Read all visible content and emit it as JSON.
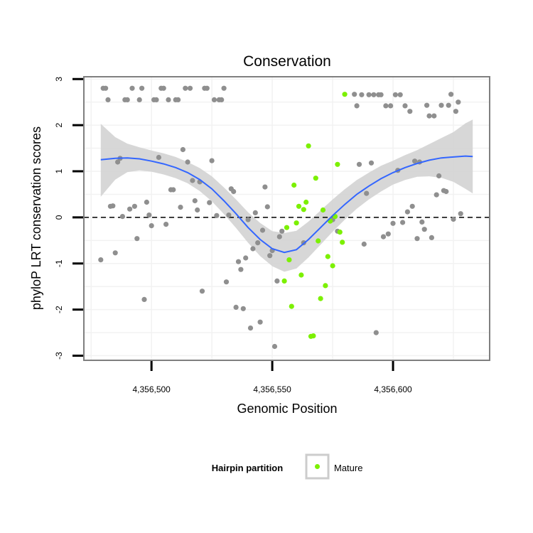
{
  "chart_data": {
    "type": "scatter",
    "title": "Conservation",
    "xlabel": "Genomic Position",
    "ylabel": "phyloP LRT conservation scores",
    "xlim": [
      4356472,
      4356640
    ],
    "ylim": [
      -3.1,
      3.05
    ],
    "x_ticks": [
      {
        "value": 4356500,
        "label": "4,356,500"
      },
      {
        "value": 4356550,
        "label": "4,356,550"
      },
      {
        "value": 4356600,
        "label": "4,356,600"
      }
    ],
    "y_ticks": [
      {
        "value": -3,
        "label": "-3"
      },
      {
        "value": -2,
        "label": "-2"
      },
      {
        "value": -1,
        "label": "-1"
      },
      {
        "value": 0,
        "label": "0"
      },
      {
        "value": 1,
        "label": "1"
      },
      {
        "value": 2,
        "label": "2"
      },
      {
        "value": 3,
        "label": "3"
      }
    ],
    "grid": true,
    "reference_line": {
      "y": 0,
      "style": "dashed"
    },
    "colors": {
      "other": "#8f8f8f",
      "mature": "#7cf000",
      "smooth": "#3366ff",
      "ribbon": "#d3d3d3",
      "panel_border": "#7f7f7f"
    },
    "legend": {
      "title": "Hairpin partition",
      "position": "bottom",
      "entries": [
        {
          "label": "Mature",
          "color": "#7cf000"
        }
      ]
    },
    "series": [
      {
        "group": "other",
        "points": [
          [
            4356479,
            -0.92
          ],
          [
            4356480,
            2.8
          ],
          [
            4356481,
            2.8
          ],
          [
            4356482,
            2.55
          ],
          [
            4356483,
            0.24
          ],
          [
            4356484,
            0.25
          ],
          [
            4356485,
            -0.77
          ],
          [
            4356486,
            1.2
          ],
          [
            4356487,
            1.28
          ],
          [
            4356488,
            0.02
          ],
          [
            4356489,
            2.55
          ],
          [
            4356490,
            2.55
          ],
          [
            4356491,
            0.18
          ],
          [
            4356492,
            2.8
          ],
          [
            4356493,
            0.24
          ],
          [
            4356494,
            -0.46
          ],
          [
            4356495,
            2.55
          ],
          [
            4356496,
            2.8
          ],
          [
            4356497,
            -1.78
          ],
          [
            4356498,
            0.33
          ],
          [
            4356499,
            0.05
          ],
          [
            4356500,
            -0.18
          ],
          [
            4356501,
            2.55
          ],
          [
            4356502,
            2.55
          ],
          [
            4356503,
            1.3
          ],
          [
            4356504,
            2.8
          ],
          [
            4356505,
            2.8
          ],
          [
            4356506,
            -0.15
          ],
          [
            4356507,
            2.55
          ],
          [
            4356508,
            0.6
          ],
          [
            4356509,
            0.6
          ],
          [
            4356510,
            2.55
          ],
          [
            4356511,
            2.55
          ],
          [
            4356512,
            0.22
          ],
          [
            4356513,
            1.47
          ],
          [
            4356514,
            2.8
          ],
          [
            4356515,
            1.2
          ],
          [
            4356516,
            2.8
          ],
          [
            4356517,
            0.8
          ],
          [
            4356518,
            0.36
          ],
          [
            4356519,
            0.16
          ],
          [
            4356520,
            0.77
          ],
          [
            4356521,
            -1.6
          ],
          [
            4356522,
            2.8
          ],
          [
            4356523,
            2.8
          ],
          [
            4356524,
            0.32
          ],
          [
            4356525,
            1.23
          ],
          [
            4356526,
            2.55
          ],
          [
            4356527,
            0.04
          ],
          [
            4356528,
            2.55
          ],
          [
            4356529,
            2.55
          ],
          [
            4356530,
            2.8
          ],
          [
            4356531,
            -1.4
          ],
          [
            4356532,
            0.05
          ],
          [
            4356533,
            0.62
          ],
          [
            4356534,
            0.56
          ],
          [
            4356535,
            -1.95
          ],
          [
            4356536,
            -0.96
          ],
          [
            4356537,
            -1.13
          ],
          [
            4356538,
            -1.98
          ],
          [
            4356539,
            -0.88
          ],
          [
            4356540,
            -0.05
          ],
          [
            4356541,
            -2.4
          ],
          [
            4356542,
            -0.68
          ],
          [
            4356543,
            0.1
          ],
          [
            4356544,
            -0.55
          ],
          [
            4356545,
            -2.27
          ],
          [
            4356546,
            -0.28
          ],
          [
            4356547,
            0.66
          ],
          [
            4356548,
            0.23
          ],
          [
            4356549,
            -0.83
          ],
          [
            4356550,
            -0.72
          ],
          [
            4356551,
            -2.8
          ],
          [
            4356552,
            -1.38
          ],
          [
            4356553,
            -0.42
          ],
          [
            4356554,
            -0.3
          ],
          [
            4356584,
            2.67
          ],
          [
            4356585,
            2.42
          ],
          [
            4356586,
            1.15
          ],
          [
            4356587,
            2.66
          ],
          [
            4356588,
            -0.58
          ],
          [
            4356589,
            0.52
          ],
          [
            4356590,
            2.66
          ],
          [
            4356591,
            1.18
          ],
          [
            4356592,
            2.66
          ],
          [
            4356593,
            -2.5
          ],
          [
            4356594,
            2.66
          ],
          [
            4356595,
            2.66
          ],
          [
            4356596,
            -0.42
          ],
          [
            4356597,
            2.42
          ],
          [
            4356598,
            -0.36
          ],
          [
            4356599,
            2.42
          ],
          [
            4356600,
            -0.13
          ],
          [
            4356601,
            2.66
          ],
          [
            4356602,
            1.02
          ],
          [
            4356603,
            2.66
          ],
          [
            4356604,
            -0.11
          ],
          [
            4356605,
            2.42
          ],
          [
            4356606,
            0.12
          ],
          [
            4356607,
            2.3
          ],
          [
            4356608,
            0.24
          ],
          [
            4356609,
            1.22
          ],
          [
            4356610,
            -0.46
          ],
          [
            4356611,
            1.2
          ],
          [
            4356612,
            -0.1
          ],
          [
            4356613,
            -0.26
          ],
          [
            4356614,
            2.43
          ],
          [
            4356615,
            2.2
          ],
          [
            4356616,
            -0.44
          ],
          [
            4356617,
            2.2
          ],
          [
            4356618,
            0.49
          ],
          [
            4356619,
            0.9
          ],
          [
            4356620,
            2.43
          ],
          [
            4356621,
            0.58
          ],
          [
            4356622,
            0.56
          ],
          [
            4356623,
            2.43
          ],
          [
            4356624,
            2.67
          ],
          [
            4356625,
            -0.04
          ],
          [
            4356626,
            2.3
          ],
          [
            4356627,
            2.5
          ],
          [
            4356628,
            0.08
          ],
          [
            4356575,
            -0.05
          ],
          [
            4356577,
            -0.3
          ],
          [
            4356563,
            -0.55
          ]
        ]
      },
      {
        "group": "Mature",
        "points": [
          [
            4356555,
            -1.38
          ],
          [
            4356556,
            -0.22
          ],
          [
            4356557,
            -0.92
          ],
          [
            4356558,
            -1.93
          ],
          [
            4356559,
            0.7
          ],
          [
            4356560,
            -0.12
          ],
          [
            4356561,
            0.24
          ],
          [
            4356562,
            -1.25
          ],
          [
            4356563,
            0.17
          ],
          [
            4356564,
            0.33
          ],
          [
            4356565,
            1.55
          ],
          [
            4356566,
            -2.58
          ],
          [
            4356567,
            -2.57
          ],
          [
            4356568,
            0.85
          ],
          [
            4356569,
            -0.51
          ],
          [
            4356570,
            -1.76
          ],
          [
            4356571,
            0.16
          ],
          [
            4356572,
            -1.48
          ],
          [
            4356573,
            -0.85
          ],
          [
            4356574,
            -0.08
          ],
          [
            4356575,
            -1.05
          ],
          [
            4356576,
            0.02
          ],
          [
            4356577,
            1.15
          ],
          [
            4356578,
            -0.32
          ],
          [
            4356579,
            -0.54
          ],
          [
            4356580,
            2.67
          ]
        ]
      }
    ],
    "smooth": {
      "x": [
        4356479,
        4356485,
        4356490,
        4356495,
        4356500,
        4356505,
        4356510,
        4356515,
        4356520,
        4356525,
        4356530,
        4356535,
        4356540,
        4356545,
        4356550,
        4356555,
        4356560,
        4356565,
        4356570,
        4356575,
        4356580,
        4356585,
        4356590,
        4356595,
        4356600,
        4356605,
        4356610,
        4356615,
        4356620,
        4356625,
        4356630,
        4356633
      ],
      "y": [
        1.25,
        1.28,
        1.29,
        1.27,
        1.22,
        1.16,
        1.08,
        0.97,
        0.82,
        0.62,
        0.36,
        0.08,
        -0.22,
        -0.48,
        -0.68,
        -0.76,
        -0.7,
        -0.48,
        -0.22,
        0.04,
        0.28,
        0.5,
        0.68,
        0.84,
        0.97,
        1.08,
        1.17,
        1.24,
        1.29,
        1.31,
        1.33,
        1.32
      ],
      "lower": [
        0.45,
        0.82,
        0.98,
        1.02,
        0.99,
        0.93,
        0.85,
        0.74,
        0.57,
        0.35,
        0.07,
        -0.23,
        -0.55,
        -0.84,
        -1.06,
        -1.18,
        -1.11,
        -0.87,
        -0.59,
        -0.31,
        -0.05,
        0.19,
        0.39,
        0.56,
        0.71,
        0.81,
        0.88,
        0.89,
        0.86,
        0.77,
        0.62,
        0.52
      ],
      "upper": [
        2.03,
        1.74,
        1.6,
        1.52,
        1.45,
        1.39,
        1.31,
        1.2,
        1.07,
        0.89,
        0.65,
        0.39,
        0.11,
        -0.12,
        -0.3,
        -0.34,
        -0.29,
        -0.09,
        0.15,
        0.39,
        0.61,
        0.81,
        0.97,
        1.12,
        1.23,
        1.35,
        1.46,
        1.59,
        1.72,
        1.85,
        2.04,
        2.12
      ]
    }
  }
}
